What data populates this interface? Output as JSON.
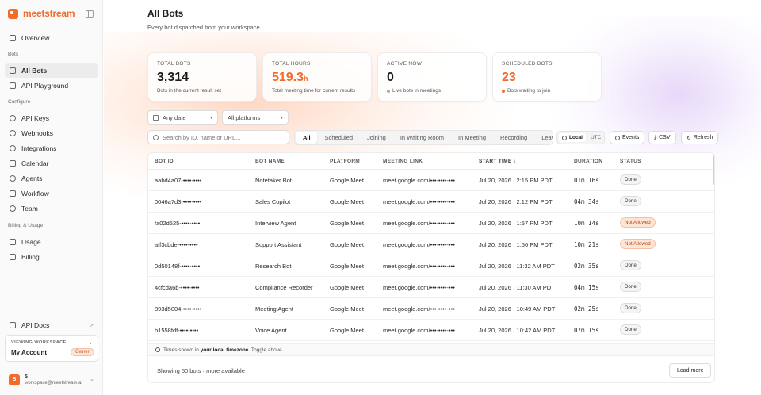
{
  "brand": {
    "name": "meetstream"
  },
  "sidebar": {
    "overview": "Overview",
    "sections": {
      "bots": "Bots",
      "configure": "Configure",
      "billing": "Billing & Usage"
    },
    "bots_items": [
      "All Bots",
      "API Playground"
    ],
    "configure_items": [
      "API Keys",
      "Webhooks",
      "Integrations",
      "Calendar",
      "Agents",
      "Workflow",
      "Team"
    ],
    "billing_items": [
      "Usage",
      "Billing"
    ],
    "api_docs": "API Docs",
    "workspace": {
      "label": "VIEWING WORKSPACE",
      "name": "My Account",
      "role": "Owner"
    },
    "user": {
      "initial": "S",
      "name": "s",
      "email": "workspace@meetstream.ai"
    }
  },
  "header": {
    "title": "All Bots",
    "subtitle": "Every bot dispatched from your workspace."
  },
  "stats": {
    "total_bots": {
      "label": "TOTAL BOTS",
      "value": "3,314",
      "sub": "Bots in the current result set"
    },
    "total_hours": {
      "label": "TOTAL HOURS",
      "value": "519.3",
      "unit": "h",
      "sub": "Total meeting time for current results"
    },
    "active_now": {
      "label": "ACTIVE NOW",
      "value": "0",
      "sub": "Live bots in meetings"
    },
    "scheduled": {
      "label": "SCHEDULED BOTS",
      "value": "23",
      "sub": "Bots waiting to join"
    }
  },
  "filters": {
    "date": "Any date",
    "platform": "All platforms",
    "search_placeholder": "Search by ID, name or URL...",
    "tabs": [
      "All",
      "Scheduled",
      "Joining",
      "In Waiting Room",
      "In Meeting",
      "Recording",
      "Leavi"
    ],
    "tz": [
      "Local",
      "UTC"
    ],
    "events": "Events",
    "csv": "CSV",
    "refresh": "Refresh"
  },
  "table": {
    "columns": [
      "BOT ID",
      "BOT NAME",
      "PLATFORM",
      "MEETING LINK",
      "START TIME ↓",
      "DURATION",
      "STATUS"
    ],
    "rows": [
      [
        "aabd4a07-••••-••••",
        "Notetaker Bot",
        "Google Meet",
        "meet.google.com/•••-••••-•••",
        "Jul 20, 2026 · 2:15 PM PDT",
        "01m 16s",
        "Done"
      ],
      [
        "0046a7d3-••••-••••",
        "Sales Copilot",
        "Google Meet",
        "meet.google.com/•••-••••-•••",
        "Jul 20, 2026 · 2:12 PM PDT",
        "04m 34s",
        "Done"
      ],
      [
        "fa02d525-••••-••••",
        "Interview Agent",
        "Google Meet",
        "meet.google.com/•••-••••-•••",
        "Jul 20, 2026 · 1:57 PM PDT",
        "10m 14s",
        "Not Allowed"
      ],
      [
        "aff3cbde-••••-••••",
        "Support Assistant",
        "Google Meet",
        "meet.google.com/•••-••••-•••",
        "Jul 20, 2026 · 1:56 PM PDT",
        "10m 21s",
        "Not Allowed"
      ],
      [
        "0d50148f-••••-••••",
        "Research Bot",
        "Google Meet",
        "meet.google.com/•••-••••-•••",
        "Jul 20, 2026 · 11:32 AM PDT",
        "02m 35s",
        "Done"
      ],
      [
        "4cfcda6b-••••-••••",
        "Compliance Recorder",
        "Google Meet",
        "meet.google.com/•••-••••-•••",
        "Jul 20, 2026 · 11:30 AM PDT",
        "04m 15s",
        "Done"
      ],
      [
        "893d5004-••••-••••",
        "Meeting Agent",
        "Google Meet",
        "meet.google.com/•••-••••-•••",
        "Jul 20, 2026 · 10:49 AM PDT",
        "02m 25s",
        "Done"
      ],
      [
        "b1558fdf-••••-••••",
        "Voice Agent",
        "Google Meet",
        "meet.google.com/•••-••••-•••",
        "Jul 20, 2026 · 10:42 AM PDT",
        "07m 15s",
        "Done"
      ]
    ],
    "tz_note_prefix": "Times shown in",
    "tz_note_bold": "your local timezone",
    "tz_note_suffix": ". Toggle above.",
    "footer": "Showing 50 bots · more available",
    "load_more": "Load more"
  },
  "colors": {
    "accent": "#f26b2b",
    "warn_bg": "#fde5d6"
  }
}
